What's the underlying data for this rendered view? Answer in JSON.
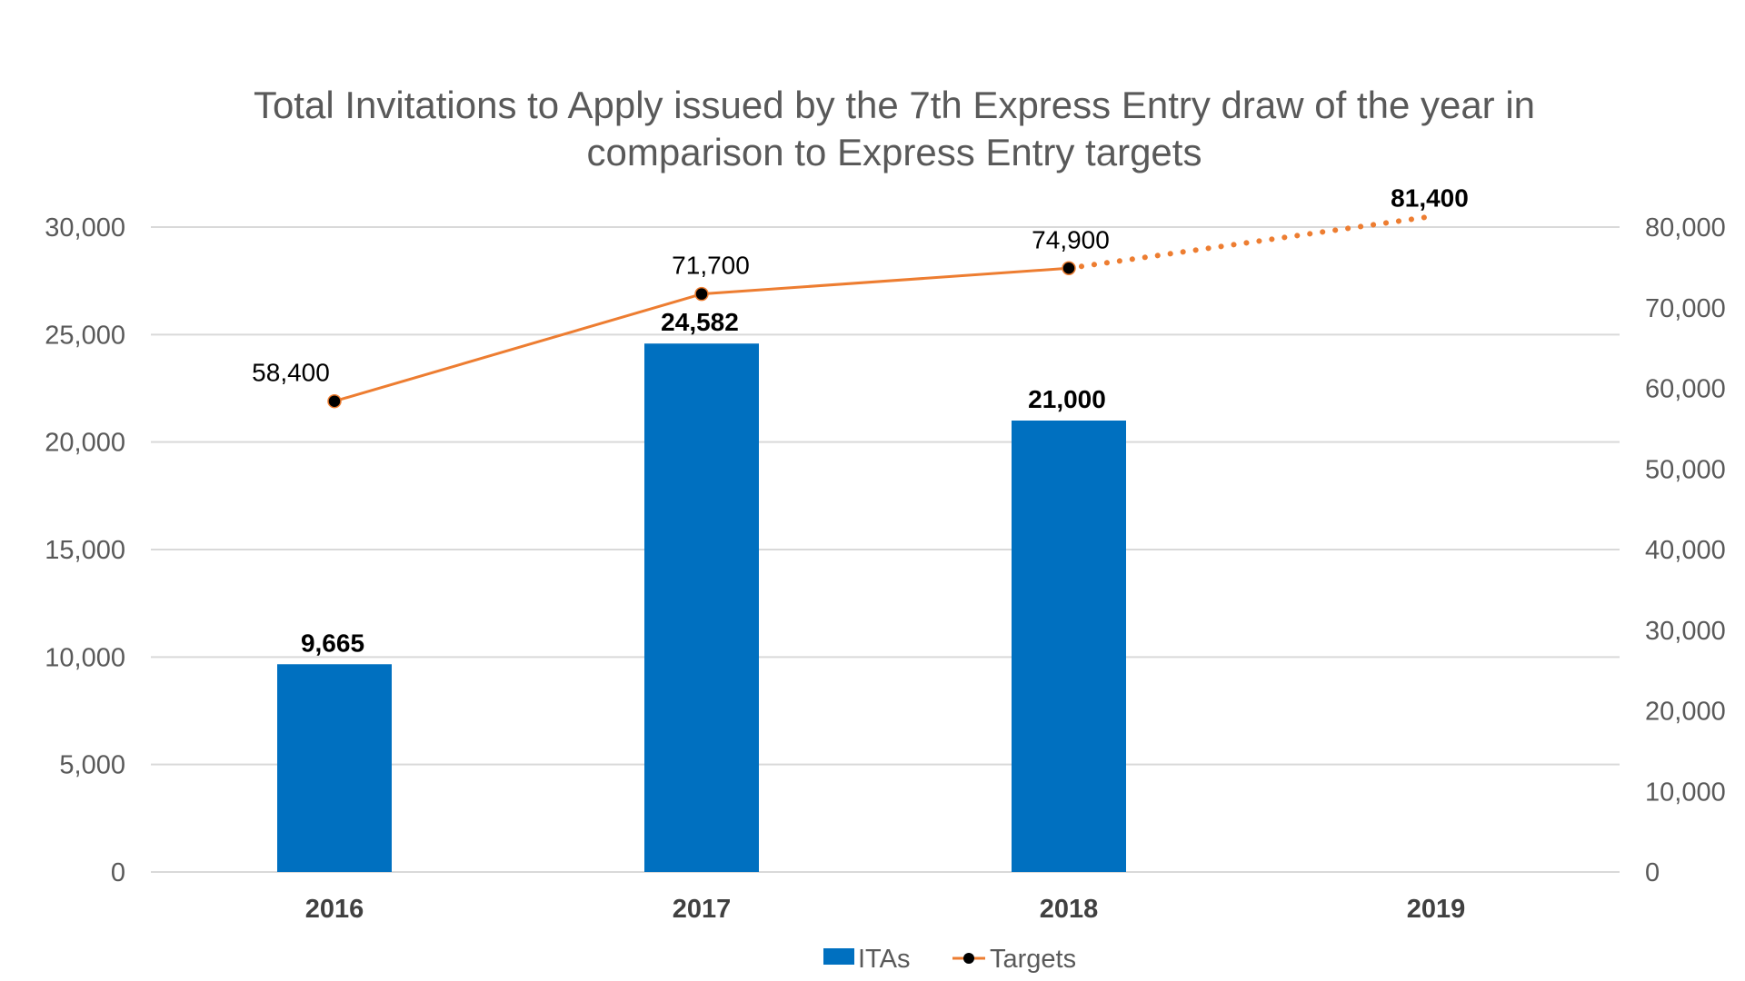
{
  "chart_data": {
    "type": "bar",
    "title": [
      "Total Invitations to Apply issued by the 7th Express Entry draw of the year in",
      "comparison to Express Entry targets"
    ],
    "categories": [
      "2016",
      "2017",
      "2018",
      "2019"
    ],
    "series": [
      {
        "name": "ITAs",
        "type": "bar",
        "axis": "left",
        "color": "#0070C0",
        "values": [
          9665,
          24582,
          21000,
          null
        ],
        "labels": [
          "9,665",
          "24,582",
          "21,000",
          ""
        ]
      },
      {
        "name": "Targets",
        "type": "line",
        "axis": "right",
        "color": "#ED7D31",
        "marker_color": "#000000",
        "values": [
          58400,
          71700,
          74900,
          81400
        ],
        "labels": [
          "58,400",
          "71,700",
          "74,900",
          "81,400"
        ],
        "dotted_from_index": 2
      }
    ],
    "y_left": {
      "range": [
        0,
        30000
      ],
      "ticks": [
        "0",
        "5,000",
        "10,000",
        "15,000",
        "20,000",
        "25,000",
        "30,000"
      ],
      "tick_values": [
        0,
        5000,
        10000,
        15000,
        20000,
        25000,
        30000
      ]
    },
    "y_right": {
      "range": [
        0,
        80000
      ],
      "ticks": [
        "0",
        "10,000",
        "20,000",
        "30,000",
        "40,000",
        "50,000",
        "60,000",
        "70,000",
        "80,000"
      ],
      "tick_values": [
        0,
        10000,
        20000,
        30000,
        40000,
        50000,
        60000,
        70000,
        80000
      ]
    },
    "grid": true,
    "legend": "bottom-center"
  }
}
